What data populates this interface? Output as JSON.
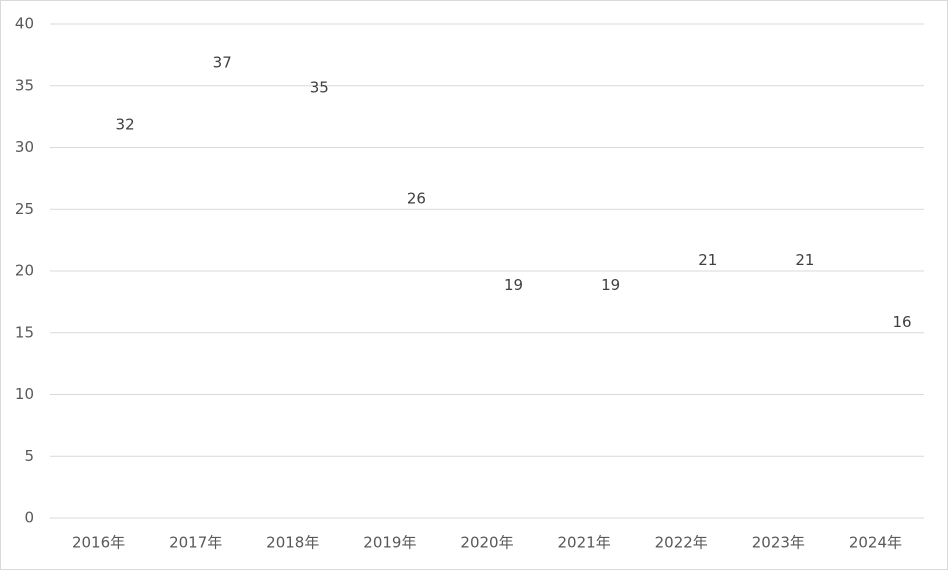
{
  "chart_data": {
    "type": "line",
    "categories": [
      "2016年",
      "2017年",
      "2018年",
      "2019年",
      "2020年",
      "2021年",
      "2022年",
      "2023年",
      "2024年"
    ],
    "values": [
      32,
      37,
      35,
      26,
      19,
      19,
      21,
      21,
      16
    ],
    "color": "#4472c4",
    "ylim": [
      0,
      40
    ],
    "yticks": [
      0,
      5,
      10,
      15,
      20,
      25,
      30,
      35,
      40
    ],
    "grid": true
  }
}
